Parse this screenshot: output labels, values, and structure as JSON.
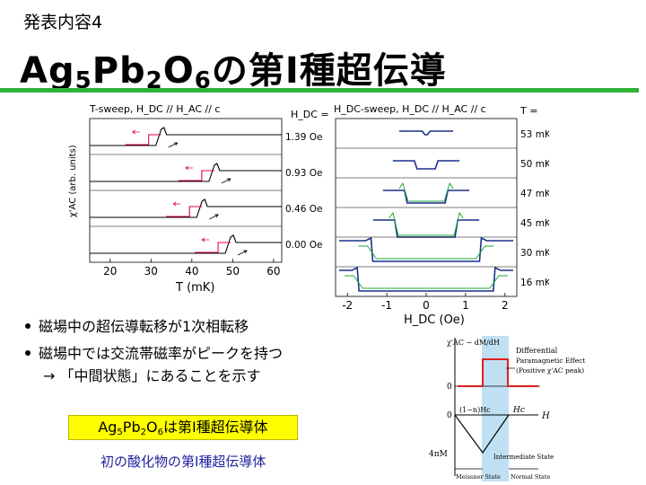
{
  "slide": {
    "kicker": "発表内容4",
    "title": {
      "pre": "Ag",
      "s1": "5",
      "mid1": "Pb",
      "s2": "2",
      "mid2": "O",
      "s3": "6",
      "post": "の第I種超伝導"
    },
    "accent_color": "#2fb33a"
  },
  "bullets": [
    {
      "text": "磁場中の超伝導転移が1次相転移"
    },
    {
      "text": "磁場中では交流帯磁率がピークを持つ",
      "sub": "→ 「中間状態」にあることを示す"
    }
  ],
  "highlight": {
    "pre": "Ag",
    "s1": "5",
    "mid1": "Pb",
    "s2": "2",
    "mid2": "O",
    "s3": "6",
    "post": "は第I種超伝導体",
    "color": "#ffff00"
  },
  "note": {
    "text": "初の酸化物の第I種超伝導体",
    "color": "#1f1f9e"
  },
  "chart_data": [
    {
      "type": "line",
      "title": "T-sweep, H_DC // H_AC // c",
      "xlabel": "T (mK)",
      "ylabel": "χ'AC (arb. units)",
      "legend_title": "H_DC =",
      "x_ticks": [
        "20",
        "30",
        "40",
        "50",
        "60"
      ],
      "xlim": [
        15,
        62
      ],
      "panels": [
        "1.39 Oe",
        "0.93 Oe",
        "0.46 Oe",
        "0.00 Oe"
      ],
      "transition_T_mK": [
        32.5,
        45.5,
        42.5,
        49.5
      ],
      "colors": {
        "heating": "#000000",
        "cooling": "#e0005a"
      }
    },
    {
      "type": "line",
      "title": "H_DC-sweep, H_DC // H_AC // c",
      "xlabel": "H_DC (Oe)",
      "legend_title": "T =",
      "x_ticks": [
        "-2",
        "-1",
        "0",
        "1",
        "2"
      ],
      "xlim": [
        -2.3,
        2.3
      ],
      "panels": [
        "53 mK",
        "50 mK",
        "47 mK",
        "45 mK",
        "30 mK",
        "16 mK"
      ],
      "critical_field_Oe": [
        0.1,
        0.3,
        0.55,
        0.8,
        1.4,
        1.75
      ],
      "colors": {
        "sweep_down": "#1a2f8a",
        "sweep_up": "#1faa3a"
      }
    },
    {
      "type": "line",
      "labels": {
        "chi": "χ'AC − dM/dH",
        "zero_top": "0",
        "zero_bottom": "0",
        "moment": "4πM",
        "field": "H",
        "hc_low": "(1−n)Hc",
        "hc": "Hc",
        "diff1": "Differential",
        "diff2": "Paramagnetic Effect",
        "diff3": "(Positive χ'AC peak)",
        "intermediate": "Intermediate State",
        "meissner": "Meissner State",
        "normal": "Normal State"
      },
      "colors": {
        "chi": "#e02020",
        "band": "#bfe0f2"
      }
    }
  ]
}
